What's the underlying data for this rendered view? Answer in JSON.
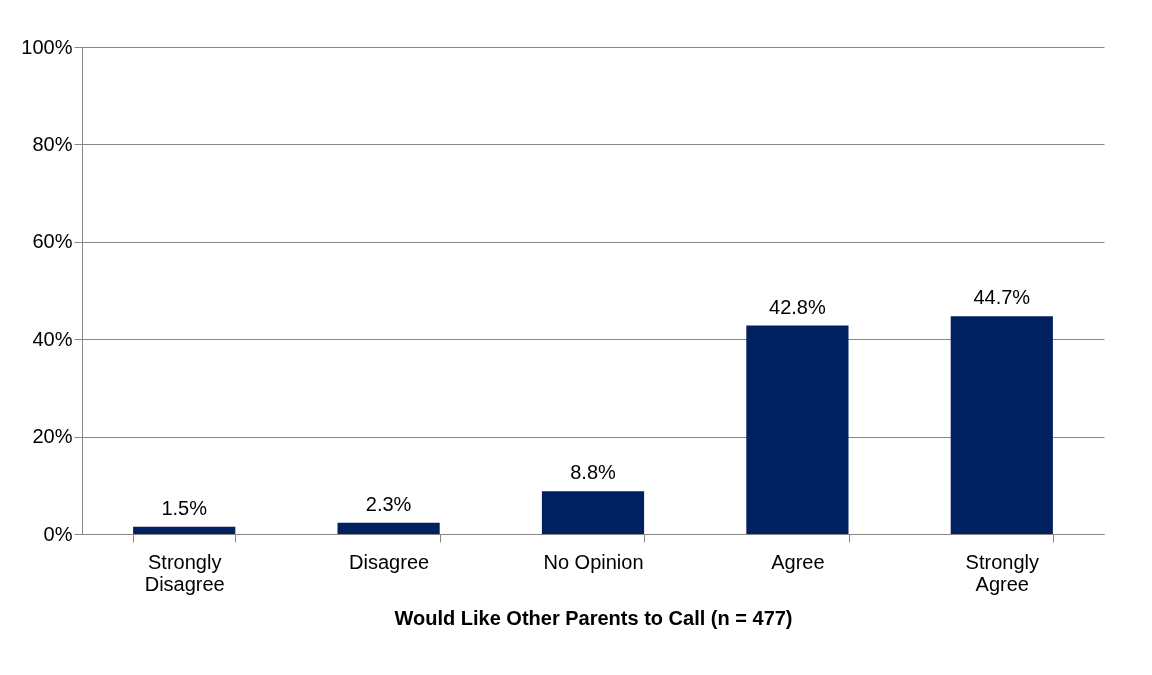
{
  "chart_data": {
    "type": "bar",
    "categories": [
      "Strongly Disagree",
      "Disagree",
      "No Opinion",
      "Agree",
      "Strongly Agree"
    ],
    "values": [
      1.5,
      2.3,
      8.8,
      42.8,
      44.7
    ],
    "value_labels": [
      "1.5%",
      "2.3%",
      "8.8%",
      "42.8%",
      "44.7%"
    ],
    "color": "#002060",
    "xlabel": "Would Like Other Parents to Call (n = 477)",
    "ylim": [
      0,
      100
    ],
    "yticks": [
      {
        "value": 0,
        "label": "0%"
      },
      {
        "value": 20,
        "label": "20%"
      },
      {
        "value": 40,
        "label": "40%"
      },
      {
        "value": 60,
        "label": "60%"
      },
      {
        "value": 80,
        "label": "80%"
      },
      {
        "value": 100,
        "label": "100%"
      }
    ],
    "grid": "y",
    "legend": false
  }
}
